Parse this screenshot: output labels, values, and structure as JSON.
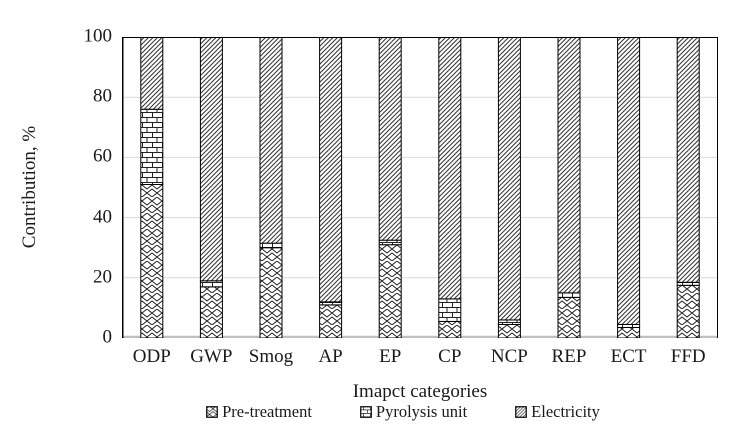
{
  "chart_data": {
    "type": "bar",
    "stacked": true,
    "categories": [
      "ODP",
      "GWP",
      "Smog",
      "AP",
      "EP",
      "CP",
      "NCP",
      "REP",
      "ECT",
      "FFD"
    ],
    "series": [
      {
        "name": "Pre-treatment",
        "pattern": "diagonal-brick",
        "values": [
          51,
          17,
          30,
          11,
          31,
          5.5,
          4.5,
          13.5,
          3.5,
          17.5
        ]
      },
      {
        "name": "Pyrolysis unit",
        "pattern": "brick",
        "values": [
          25,
          2,
          1.5,
          1,
          1.5,
          7.5,
          1.5,
          1.5,
          1,
          1
        ]
      },
      {
        "name": "Electricity",
        "pattern": "diagonal-hatch",
        "values": [
          24,
          81,
          68.5,
          88,
          67.5,
          87,
          94,
          85,
          95.5,
          81.5
        ]
      }
    ],
    "title": "",
    "xlabel": "Imapct categories",
    "ylabel": "Contribution, %",
    "ylim": [
      0,
      100
    ],
    "yticks": [
      0,
      20,
      40,
      60,
      80,
      100
    ],
    "grid": true,
    "legend_position": "bottom",
    "colors": {
      "bar_fill": "#ffffff",
      "hatch_stroke": "#222222",
      "segment_border": "#000000",
      "gridline": "#d9d9d9",
      "axis_left": "#000000",
      "axis_bottom": "#c0c0c0",
      "text": "#1a1a1a"
    }
  }
}
